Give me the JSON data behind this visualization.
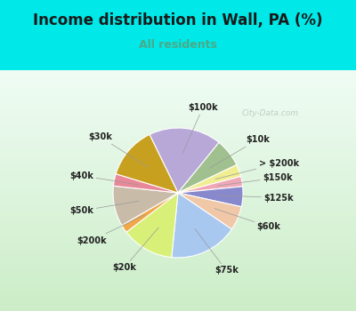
{
  "title": "Income distribution in Wall, PA (%)",
  "subtitle": "All residents",
  "title_color": "#1a1a1a",
  "subtitle_color": "#4aaa88",
  "bg_top_color": "#00e8e8",
  "chart_bg_gradient_top": "#e8f8f0",
  "chart_bg_gradient_bottom": "#c8e8c0",
  "watermark": "City-Data.com",
  "labels": [
    "$100k",
    "$10k",
    "> $200k",
    "$150k",
    "$125k",
    "$60k",
    "$75k",
    "$20k",
    "$200k",
    "$50k",
    "$40k",
    "$30k"
  ],
  "sizes": [
    18,
    7,
    3,
    2.5,
    5,
    6,
    17,
    13,
    2,
    10,
    3,
    13
  ],
  "colors": [
    "#b8a8d8",
    "#a0c090",
    "#f0ee90",
    "#f0a8b8",
    "#8888cc",
    "#f0c8a8",
    "#a8c8f0",
    "#d8f078",
    "#f0a848",
    "#c8bca8",
    "#e88898",
    "#c8a020"
  ],
  "label_fontsize": 7,
  "title_fontsize": 12,
  "subtitle_fontsize": 9,
  "startangle": 116
}
